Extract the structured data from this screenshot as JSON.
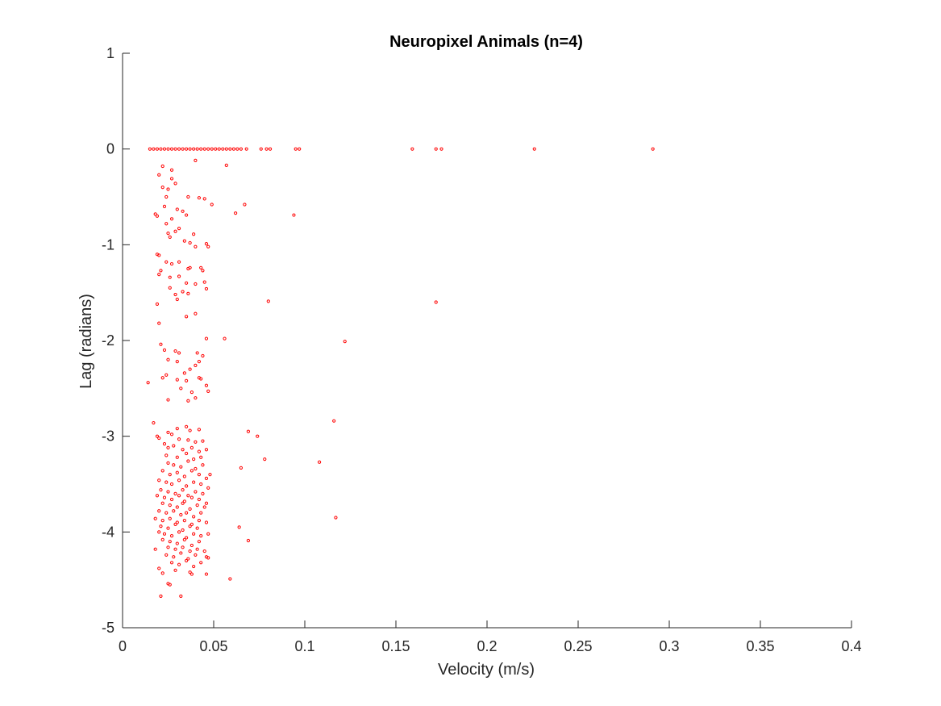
{
  "chart_data": {
    "type": "scatter",
    "title": "Neuropixel Animals (n=4)",
    "xlabel": "Velocity (m/s)",
    "ylabel": "Lag (radians)",
    "xlim": [
      0,
      0.4
    ],
    "ylim": [
      -5,
      1
    ],
    "xticks": [
      0,
      0.05,
      0.1,
      0.15,
      0.2,
      0.25,
      0.3,
      0.35,
      0.4
    ],
    "xtick_labels": [
      "0",
      "0.05",
      "0.1",
      "0.15",
      "0.2",
      "0.25",
      "0.3",
      "0.35",
      "0.4"
    ],
    "yticks": [
      1,
      0,
      -1,
      -2,
      -3,
      -4,
      -5
    ],
    "ytick_labels": [
      "1",
      "0",
      "-1",
      "-2",
      "-3",
      "-4",
      "-5"
    ],
    "grid": false,
    "legend": "none",
    "marker_color": "#ff0000",
    "series": [
      {
        "points": [
          [
            0.015,
            0
          ],
          [
            0.017,
            0
          ],
          [
            0.019,
            0
          ],
          [
            0.021,
            0
          ],
          [
            0.023,
            0
          ],
          [
            0.025,
            0
          ],
          [
            0.027,
            0
          ],
          [
            0.029,
            0
          ],
          [
            0.031,
            0
          ],
          [
            0.033,
            0
          ],
          [
            0.035,
            0
          ],
          [
            0.037,
            0
          ],
          [
            0.039,
            0
          ],
          [
            0.041,
            0
          ],
          [
            0.043,
            0
          ],
          [
            0.045,
            0
          ],
          [
            0.047,
            0
          ],
          [
            0.049,
            0
          ],
          [
            0.051,
            0
          ],
          [
            0.053,
            0
          ],
          [
            0.055,
            0
          ],
          [
            0.057,
            0
          ],
          [
            0.059,
            0
          ],
          [
            0.061,
            0
          ],
          [
            0.063,
            0
          ],
          [
            0.065,
            0
          ],
          [
            0.068,
            0
          ],
          [
            0.076,
            0
          ],
          [
            0.079,
            0
          ],
          [
            0.081,
            0
          ],
          [
            0.095,
            0
          ],
          [
            0.097,
            0
          ],
          [
            0.159,
            0
          ],
          [
            0.172,
            0
          ],
          [
            0.175,
            0
          ],
          [
            0.226,
            0
          ],
          [
            0.291,
            0
          ],
          [
            0.022,
            -0.18
          ],
          [
            0.027,
            -0.22
          ],
          [
            0.04,
            -0.12
          ],
          [
            0.057,
            -0.17
          ],
          [
            0.02,
            -0.27
          ],
          [
            0.027,
            -0.31
          ],
          [
            0.029,
            -0.36
          ],
          [
            0.025,
            -0.42
          ],
          [
            0.022,
            -0.4
          ],
          [
            0.024,
            -0.5
          ],
          [
            0.036,
            -0.5
          ],
          [
            0.042,
            -0.51
          ],
          [
            0.045,
            -0.52
          ],
          [
            0.049,
            -0.58
          ],
          [
            0.067,
            -0.58
          ],
          [
            0.023,
            -0.6
          ],
          [
            0.03,
            -0.63
          ],
          [
            0.033,
            -0.65
          ],
          [
            0.035,
            -0.69
          ],
          [
            0.018,
            -0.68
          ],
          [
            0.019,
            -0.7
          ],
          [
            0.062,
            -0.67
          ],
          [
            0.094,
            -0.69
          ],
          [
            0.027,
            -0.73
          ],
          [
            0.024,
            -0.78
          ],
          [
            0.031,
            -0.83
          ],
          [
            0.029,
            -0.86
          ],
          [
            0.025,
            -0.88
          ],
          [
            0.026,
            -0.92
          ],
          [
            0.039,
            -0.89
          ],
          [
            0.034,
            -0.96
          ],
          [
            0.037,
            -0.98
          ],
          [
            0.046,
            -0.99
          ],
          [
            0.047,
            -1.02
          ],
          [
            0.04,
            -1.02
          ],
          [
            0.019,
            -1.1
          ],
          [
            0.02,
            -1.11
          ],
          [
            0.024,
            -1.18
          ],
          [
            0.027,
            -1.2
          ],
          [
            0.031,
            -1.18
          ],
          [
            0.036,
            -1.25
          ],
          [
            0.037,
            -1.24
          ],
          [
            0.043,
            -1.24
          ],
          [
            0.044,
            -1.27
          ],
          [
            0.02,
            -1.31
          ],
          [
            0.021,
            -1.27
          ],
          [
            0.026,
            -1.34
          ],
          [
            0.031,
            -1.33
          ],
          [
            0.035,
            -1.4
          ],
          [
            0.04,
            -1.41
          ],
          [
            0.045,
            -1.39
          ],
          [
            0.026,
            -1.45
          ],
          [
            0.029,
            -1.52
          ],
          [
            0.033,
            -1.49
          ],
          [
            0.036,
            -1.51
          ],
          [
            0.03,
            -1.57
          ],
          [
            0.046,
            -1.46
          ],
          [
            0.019,
            -1.62
          ],
          [
            0.08,
            -1.59
          ],
          [
            0.172,
            -1.6
          ],
          [
            0.02,
            -1.82
          ],
          [
            0.035,
            -1.75
          ],
          [
            0.04,
            -1.72
          ],
          [
            0.056,
            -1.98
          ],
          [
            0.046,
            -1.98
          ],
          [
            0.122,
            -2.01
          ],
          [
            0.021,
            -2.04
          ],
          [
            0.023,
            -2.1
          ],
          [
            0.029,
            -2.11
          ],
          [
            0.031,
            -2.13
          ],
          [
            0.041,
            -2.13
          ],
          [
            0.044,
            -2.16
          ],
          [
            0.025,
            -2.2
          ],
          [
            0.03,
            -2.22
          ],
          [
            0.042,
            -2.22
          ],
          [
            0.04,
            -2.26
          ],
          [
            0.037,
            -2.3
          ],
          [
            0.034,
            -2.34
          ],
          [
            0.022,
            -2.39
          ],
          [
            0.024,
            -2.36
          ],
          [
            0.03,
            -2.41
          ],
          [
            0.035,
            -2.42
          ],
          [
            0.042,
            -2.39
          ],
          [
            0.043,
            -2.4
          ],
          [
            0.014,
            -2.44
          ],
          [
            0.046,
            -2.47
          ],
          [
            0.047,
            -2.53
          ],
          [
            0.032,
            -2.5
          ],
          [
            0.038,
            -2.54
          ],
          [
            0.025,
            -2.62
          ],
          [
            0.036,
            -2.63
          ],
          [
            0.04,
            -2.6
          ],
          [
            0.017,
            -2.86
          ],
          [
            0.116,
            -2.84
          ],
          [
            0.03,
            -2.92
          ],
          [
            0.035,
            -2.9
          ],
          [
            0.037,
            -2.94
          ],
          [
            0.042,
            -2.93
          ],
          [
            0.025,
            -2.96
          ],
          [
            0.027,
            -2.98
          ],
          [
            0.019,
            -3.0
          ],
          [
            0.02,
            -3.02
          ],
          [
            0.069,
            -2.95
          ],
          [
            0.074,
            -3.0
          ],
          [
            0.031,
            -3.03
          ],
          [
            0.036,
            -3.04
          ],
          [
            0.04,
            -3.06
          ],
          [
            0.044,
            -3.05
          ],
          [
            0.023,
            -3.08
          ],
          [
            0.025,
            -3.12
          ],
          [
            0.028,
            -3.1
          ],
          [
            0.033,
            -3.14
          ],
          [
            0.038,
            -3.12
          ],
          [
            0.042,
            -3.16
          ],
          [
            0.046,
            -3.14
          ],
          [
            0.024,
            -3.2
          ],
          [
            0.03,
            -3.22
          ],
          [
            0.035,
            -3.18
          ],
          [
            0.039,
            -3.24
          ],
          [
            0.043,
            -3.22
          ],
          [
            0.078,
            -3.24
          ],
          [
            0.108,
            -3.27
          ],
          [
            0.025,
            -3.28
          ],
          [
            0.028,
            -3.3
          ],
          [
            0.032,
            -3.32
          ],
          [
            0.036,
            -3.26
          ],
          [
            0.04,
            -3.34
          ],
          [
            0.044,
            -3.3
          ],
          [
            0.065,
            -3.33
          ],
          [
            0.022,
            -3.36
          ],
          [
            0.026,
            -3.4
          ],
          [
            0.03,
            -3.38
          ],
          [
            0.034,
            -3.42
          ],
          [
            0.038,
            -3.36
          ],
          [
            0.042,
            -3.4
          ],
          [
            0.046,
            -3.44
          ],
          [
            0.048,
            -3.4
          ],
          [
            0.02,
            -3.46
          ],
          [
            0.024,
            -3.48
          ],
          [
            0.027,
            -3.5
          ],
          [
            0.031,
            -3.46
          ],
          [
            0.035,
            -3.52
          ],
          [
            0.039,
            -3.48
          ],
          [
            0.043,
            -3.5
          ],
          [
            0.047,
            -3.54
          ],
          [
            0.021,
            -3.56
          ],
          [
            0.025,
            -3.58
          ],
          [
            0.029,
            -3.6
          ],
          [
            0.033,
            -3.56
          ],
          [
            0.036,
            -3.62
          ],
          [
            0.04,
            -3.58
          ],
          [
            0.044,
            -3.6
          ],
          [
            0.019,
            -3.62
          ],
          [
            0.023,
            -3.64
          ],
          [
            0.027,
            -3.66
          ],
          [
            0.031,
            -3.62
          ],
          [
            0.034,
            -3.68
          ],
          [
            0.038,
            -3.64
          ],
          [
            0.042,
            -3.66
          ],
          [
            0.046,
            -3.7
          ],
          [
            0.022,
            -3.7
          ],
          [
            0.026,
            -3.72
          ],
          [
            0.03,
            -3.74
          ],
          [
            0.033,
            -3.7
          ],
          [
            0.037,
            -3.76
          ],
          [
            0.041,
            -3.72
          ],
          [
            0.045,
            -3.74
          ],
          [
            0.02,
            -3.78
          ],
          [
            0.024,
            -3.8
          ],
          [
            0.028,
            -3.78
          ],
          [
            0.032,
            -3.82
          ],
          [
            0.035,
            -3.8
          ],
          [
            0.039,
            -3.84
          ],
          [
            0.043,
            -3.8
          ],
          [
            0.117,
            -3.85
          ],
          [
            0.018,
            -3.86
          ],
          [
            0.022,
            -3.88
          ],
          [
            0.026,
            -3.86
          ],
          [
            0.03,
            -3.9
          ],
          [
            0.034,
            -3.88
          ],
          [
            0.038,
            -3.92
          ],
          [
            0.042,
            -3.88
          ],
          [
            0.046,
            -3.9
          ],
          [
            0.021,
            -3.94
          ],
          [
            0.025,
            -3.96
          ],
          [
            0.029,
            -3.92
          ],
          [
            0.033,
            -3.98
          ],
          [
            0.037,
            -3.94
          ],
          [
            0.041,
            -3.96
          ],
          [
            0.064,
            -3.95
          ],
          [
            0.02,
            -4.0
          ],
          [
            0.023,
            -4.02
          ],
          [
            0.027,
            -4.04
          ],
          [
            0.031,
            -4.0
          ],
          [
            0.035,
            -4.06
          ],
          [
            0.039,
            -4.02
          ],
          [
            0.043,
            -4.04
          ],
          [
            0.047,
            -4.02
          ],
          [
            0.069,
            -4.09
          ],
          [
            0.022,
            -4.08
          ],
          [
            0.026,
            -4.1
          ],
          [
            0.03,
            -4.12
          ],
          [
            0.034,
            -4.08
          ],
          [
            0.038,
            -4.14
          ],
          [
            0.042,
            -4.1
          ],
          [
            0.025,
            -4.16
          ],
          [
            0.029,
            -4.18
          ],
          [
            0.033,
            -4.16
          ],
          [
            0.037,
            -4.2
          ],
          [
            0.041,
            -4.18
          ],
          [
            0.045,
            -4.2
          ],
          [
            0.018,
            -4.18
          ],
          [
            0.024,
            -4.24
          ],
          [
            0.028,
            -4.26
          ],
          [
            0.032,
            -4.22
          ],
          [
            0.036,
            -4.28
          ],
          [
            0.04,
            -4.24
          ],
          [
            0.046,
            -4.26
          ],
          [
            0.047,
            -4.27
          ],
          [
            0.027,
            -4.32
          ],
          [
            0.031,
            -4.34
          ],
          [
            0.035,
            -4.3
          ],
          [
            0.039,
            -4.36
          ],
          [
            0.043,
            -4.32
          ],
          [
            0.02,
            -4.38
          ],
          [
            0.029,
            -4.4
          ],
          [
            0.037,
            -4.42
          ],
          [
            0.038,
            -4.44
          ],
          [
            0.046,
            -4.44
          ],
          [
            0.022,
            -4.43
          ],
          [
            0.059,
            -4.49
          ],
          [
            0.025,
            -4.54
          ],
          [
            0.026,
            -4.55
          ],
          [
            0.021,
            -4.67
          ],
          [
            0.032,
            -4.67
          ]
        ]
      }
    ]
  }
}
